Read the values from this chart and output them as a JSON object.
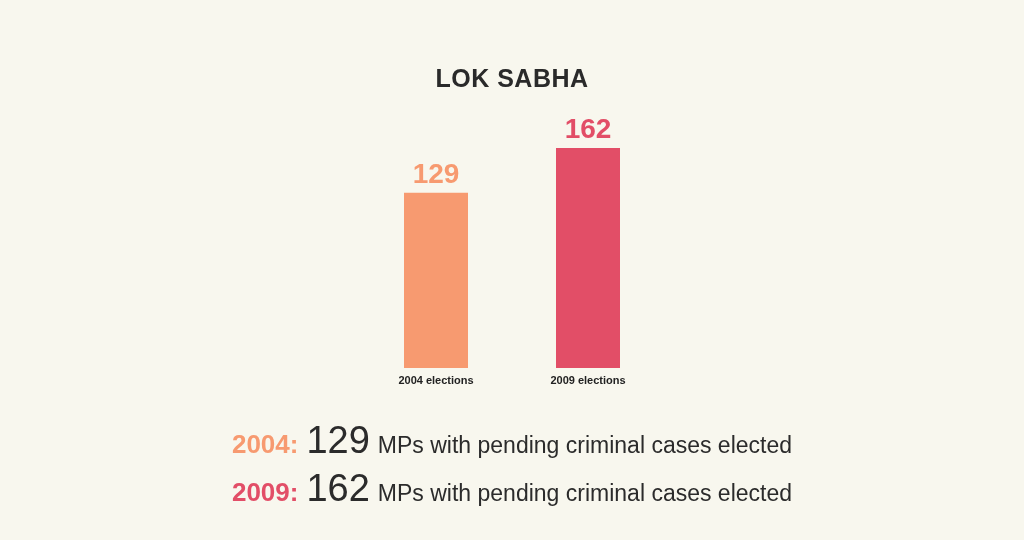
{
  "chart_data": {
    "type": "bar",
    "title": "LOK SABHA",
    "categories": [
      "2004 elections",
      "2009 elections"
    ],
    "values": [
      129,
      162
    ],
    "colors": [
      "#f79a70",
      "#e24e67"
    ],
    "data_labels": true,
    "annotations": [
      "2004: 129 MPs with pending criminal cases elected",
      "2009: 162 MPs with pending criminal cases elected"
    ]
  }
}
